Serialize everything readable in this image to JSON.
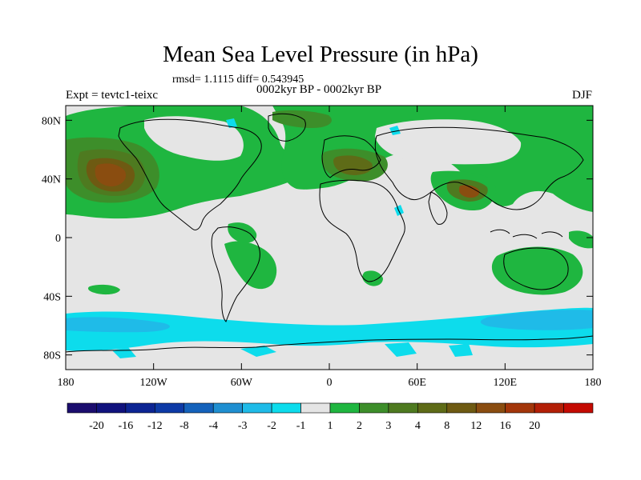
{
  "title": "Mean Sea Level Pressure (in hPa)",
  "stats_text": "rmsd= 1.1115 diff= 0.543945",
  "experiment_text": "Expt = tevtc1-teixc",
  "period_text": "0002kyr BP - 0002kyr BP",
  "season_text": "DJF",
  "map": {
    "projection": "cylindrical-equidistant",
    "lon_range": [
      -180,
      180
    ],
    "lat_range": [
      -90,
      90
    ],
    "lon_ticks": [
      {
        "value": -180,
        "label": "180"
      },
      {
        "value": -120,
        "label": "120W"
      },
      {
        "value": -60,
        "label": "60W"
      },
      {
        "value": 0,
        "label": "0"
      },
      {
        "value": 60,
        "label": "60E"
      },
      {
        "value": 120,
        "label": "120E"
      },
      {
        "value": 180,
        "label": "180"
      }
    ],
    "lat_ticks": [
      {
        "value": 80,
        "label": "80N"
      },
      {
        "value": 40,
        "label": "40N"
      },
      {
        "value": 0,
        "label": "0"
      },
      {
        "value": -40,
        "label": "40S"
      },
      {
        "value": -80,
        "label": "80S"
      }
    ]
  },
  "colorbar": {
    "colors": [
      "#1b0d6e",
      "#10127d",
      "#0c2493",
      "#0d3aa6",
      "#1462bb",
      "#1f8fd1",
      "#1fbbe8",
      "#0ddcec",
      "#e5e5e5",
      "#1fb640",
      "#3d8e2a",
      "#4e7a20",
      "#5e6b17",
      "#6e5a12",
      "#8a4d10",
      "#a3360a",
      "#b31f06",
      "#c40a02"
    ],
    "labels": [
      "-20",
      "-16",
      "-12",
      "-8",
      "-4",
      "-3",
      "-2",
      "-1",
      "1",
      "2",
      "3",
      "4",
      "8",
      "12",
      "16",
      "20"
    ]
  }
}
